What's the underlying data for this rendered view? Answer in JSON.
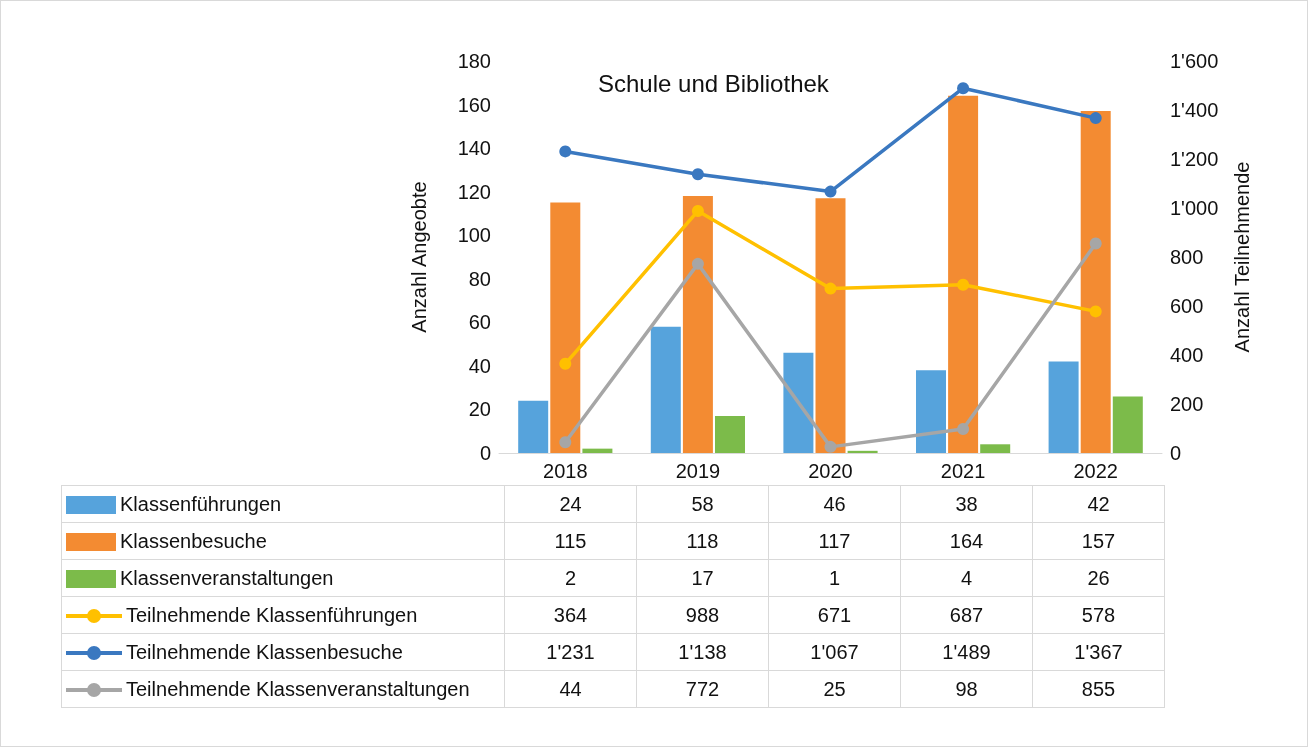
{
  "chart_data": {
    "type": "bar",
    "title": "Schule und Bibliothek",
    "ylabel": "Anzahl Angeobte",
    "y2label": "Anzahl Teilnehmende",
    "categories": [
      "2018",
      "2019",
      "2020",
      "2021",
      "2022"
    ],
    "series": [
      {
        "name": "Klassenführungen",
        "color": "#56a3dc",
        "values": [
          24,
          58,
          46,
          38,
          42
        ],
        "value_labels": [
          "24",
          "58",
          "46",
          "38",
          "42"
        ]
      },
      {
        "name": "Klassenbesuche",
        "color": "#f38b32",
        "values": [
          115,
          118,
          117,
          164,
          157
        ],
        "value_labels": [
          "115",
          "118",
          "117",
          "164",
          "157"
        ]
      },
      {
        "name": "Klassenveranstaltungen",
        "color": "#7cbb4a",
        "values": [
          2,
          17,
          1,
          4,
          26
        ],
        "value_labels": [
          "2",
          "17",
          "1",
          "4",
          "26"
        ]
      },
      {
        "name": "Teilnehmende Klassenführungen",
        "type": "line",
        "axis": "y2",
        "color": "#ffc000",
        "values": [
          364,
          988,
          671,
          687,
          578
        ],
        "value_labels": [
          "364",
          "988",
          "671",
          "687",
          "578"
        ]
      },
      {
        "name": "Teilnehmende Klassenbesuche",
        "type": "line",
        "axis": "y2",
        "color": "#3a78c0",
        "values": [
          1231,
          1138,
          1067,
          1489,
          1367
        ],
        "value_labels": [
          "1'231",
          "1'138",
          "1'067",
          "1'489",
          "1'367"
        ]
      },
      {
        "name": "Teilnehmende Klassenveranstaltungen",
        "type": "line",
        "axis": "y2",
        "color": "#a6a6a6",
        "values": [
          44,
          772,
          25,
          98,
          855
        ],
        "value_labels": [
          "44",
          "772",
          "25",
          "98",
          "855"
        ]
      }
    ],
    "ylim": [
      0,
      180
    ],
    "yticks": [
      0,
      20,
      40,
      60,
      80,
      100,
      120,
      140,
      160,
      180
    ],
    "y2lim": [
      0,
      1600
    ],
    "y2ticks": [
      0,
      200,
      400,
      600,
      800,
      {
        "value": 1000,
        "label": "1'000"
      },
      {
        "value": 1200,
        "label": "1'200"
      },
      {
        "value": 1400,
        "label": "1'400"
      },
      {
        "value": 1600,
        "label": "1'600"
      }
    ],
    "marker": "circle",
    "legend": "bottom",
    "grid": false
  }
}
